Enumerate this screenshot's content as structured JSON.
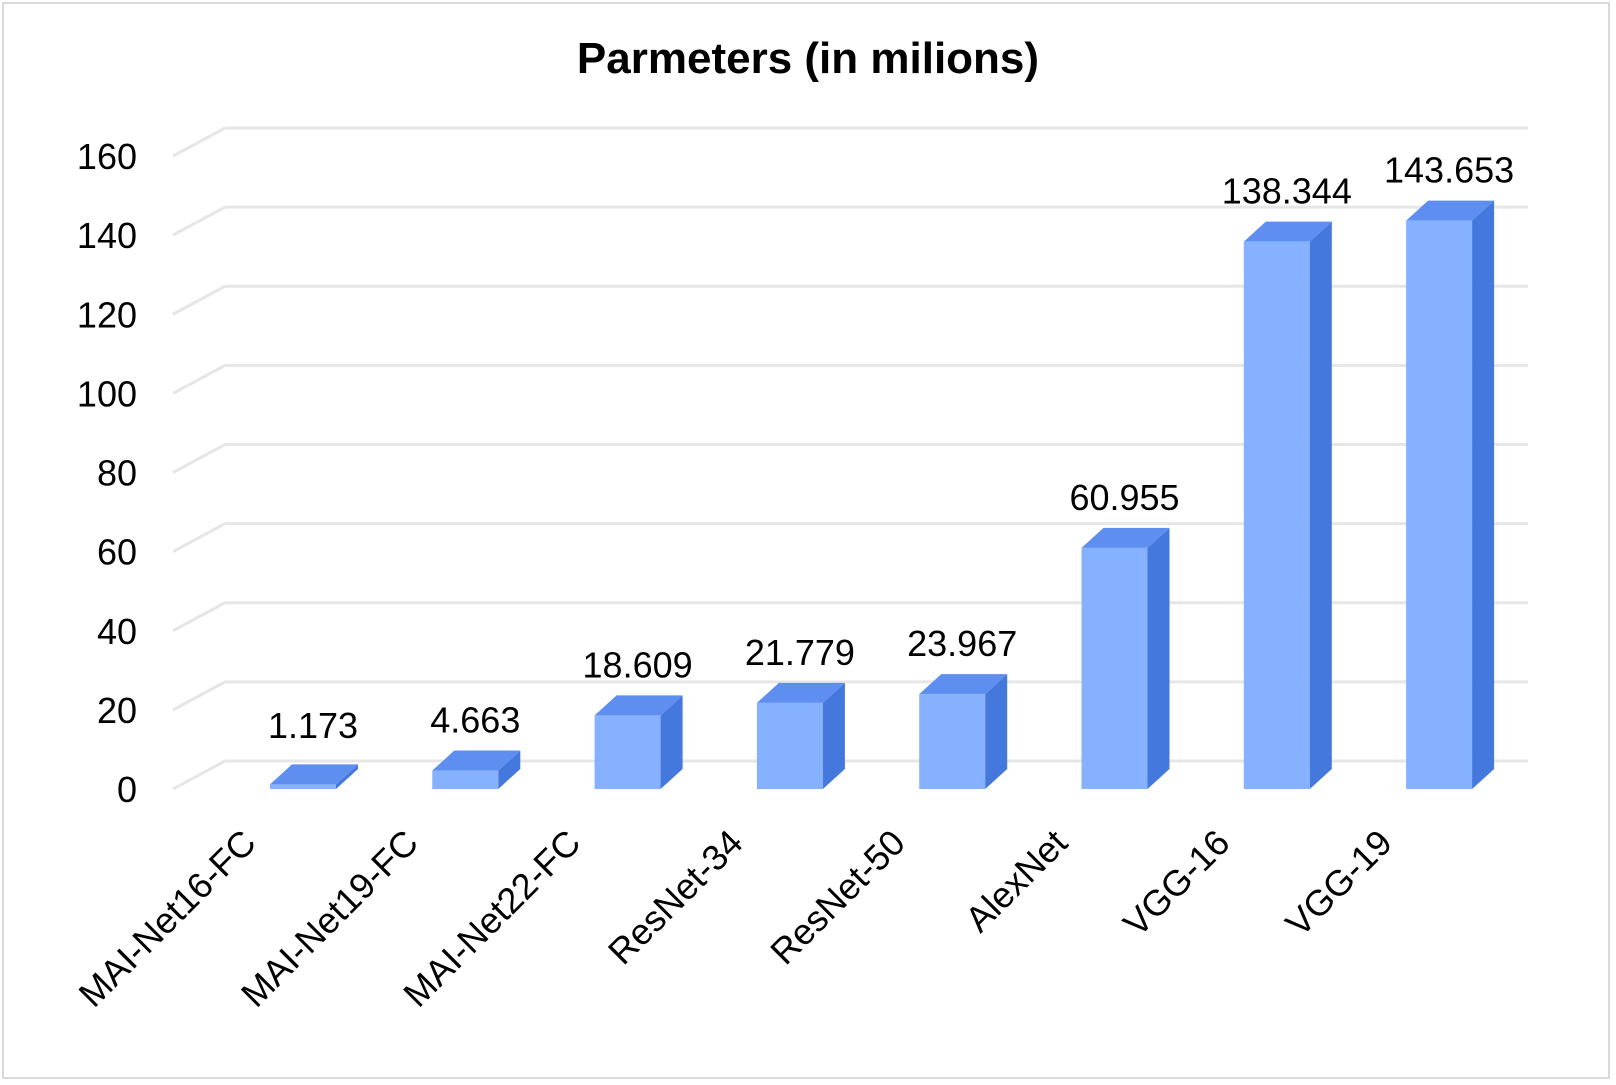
{
  "chart_data": {
    "type": "bar",
    "title": "Parmeters (in milions)",
    "categories": [
      "MAI-Net16-FC",
      "MAI-Net19-FC",
      "MAI-Net22-FC",
      "ResNet-34",
      "ResNet-50",
      "AlexNet",
      "VGG-16",
      "VGG-19"
    ],
    "values": [
      1.173,
      4.663,
      18.609,
      21.779,
      23.967,
      60.955,
      138.344,
      143.653
    ],
    "value_labels": [
      "1.173",
      "4.663",
      "18.609",
      "21.779",
      "23.967",
      "60.955",
      "138.344",
      "143.653"
    ],
    "ylim": [
      0,
      160
    ],
    "yticks": [
      0,
      20,
      40,
      60,
      80,
      100,
      120,
      140,
      160
    ],
    "grid": true,
    "legend": "none",
    "style": "3d-column"
  },
  "colors": {
    "bar_front": "#85b1ff",
    "bar_side": "#4478dd",
    "bar_top": "#5e8ff0",
    "grid": "#e6e6e6"
  }
}
